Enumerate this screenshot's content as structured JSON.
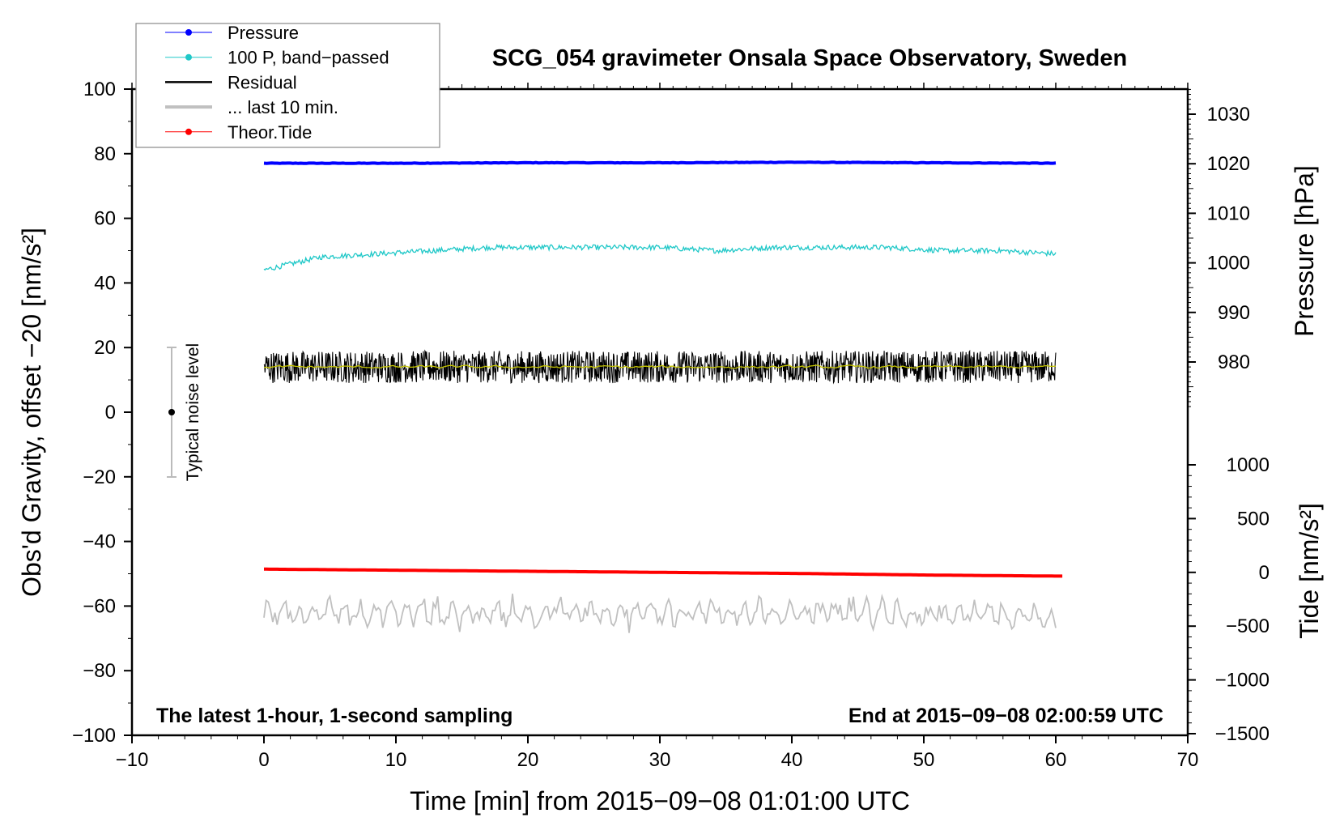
{
  "chart_data": {
    "type": "line",
    "title": "SCG_054 gravimeter Onsala Space Observatory, Sweden",
    "xlabel": "Time [min] from 2015−09−08 01:01:00 UTC",
    "ylabel_left": "Obs'd Gravity, offset −20 [nm/s²]",
    "ylabel_right_top": "Pressure [hPa]",
    "ylabel_right_bottom": "Tide [nm/s²]",
    "xlim": [
      -10,
      70
    ],
    "ylim": [
      -100,
      100
    ],
    "pressure_lim": [
      980,
      1030
    ],
    "tide_lim": [
      -1500,
      1000
    ],
    "x_ticks": [
      "−10",
      "0",
      "10",
      "20",
      "30",
      "40",
      "50",
      "60",
      "70"
    ],
    "y_ticks": [
      "100",
      "80",
      "60",
      "40",
      "20",
      "0",
      "−20",
      "−40",
      "−60",
      "−80",
      "−100"
    ],
    "pressure_ticks": [
      "1030",
      "1020",
      "1010",
      "1000",
      "990",
      "980"
    ],
    "tide_ticks": [
      "1000",
      "500",
      "0",
      "−500",
      "−1000",
      "−1500"
    ],
    "annotation_left": "The latest 1-hour, 1-second sampling",
    "annotation_right": "End at 2015−09−08 02:00:59 UTC",
    "noise_label": "Typical noise level",
    "noise_bar": {
      "x": -7,
      "center": 0,
      "half_range": 20
    },
    "legend": {
      "position": "top-left",
      "entries": [
        "Pressure",
        "100 P, band−passed",
        "Residual",
        "... last 10 min.",
        "Theor.Tide"
      ]
    },
    "series": [
      {
        "name": "Pressure",
        "unit": "hPa",
        "axis": "pressure",
        "color": "#0000ff",
        "x_range": [
          0,
          60
        ],
        "values": [
          1020.1,
          1020.1,
          1020.2,
          1020.2,
          1020.3,
          1020.2,
          1020.1
        ],
        "noise": 0.05
      },
      {
        "name": "100 P, band-passed",
        "axis": "left",
        "color": "#20c8c8",
        "x_range": [
          0,
          60
        ],
        "values": [
          44,
          48,
          49,
          50,
          51,
          51,
          51,
          51,
          50,
          51,
          51,
          51,
          50,
          50,
          49
        ],
        "noise": 0.8
      },
      {
        "name": "Residual",
        "axis": "left",
        "color": "#000000",
        "x_range": [
          0,
          60
        ],
        "values": [
          14,
          14,
          14,
          14,
          14,
          14,
          14
        ],
        "noise": 5
      },
      {
        "name": "Residual smoothed",
        "axis": "left",
        "color": "#c8c800",
        "x_range": [
          0,
          60
        ],
        "values": [
          14,
          14,
          14,
          14,
          14,
          14,
          14
        ],
        "noise": 0.8
      },
      {
        "name": "... last 10 min.",
        "axis": "left",
        "color": "#c0c0c0",
        "x_range": [
          0,
          60
        ],
        "values": [
          -62,
          -62,
          -62,
          -62,
          -62,
          -62,
          -63
        ],
        "noise": 4.5
      },
      {
        "name": "Theor.Tide",
        "unit": "nm/s²",
        "axis": "tide",
        "color": "#ff0000",
        "x_range": [
          0,
          60.5
        ],
        "values": [
          30,
          20,
          10,
          0,
          -10,
          -25,
          -35
        ],
        "noise": 0
      }
    ]
  }
}
